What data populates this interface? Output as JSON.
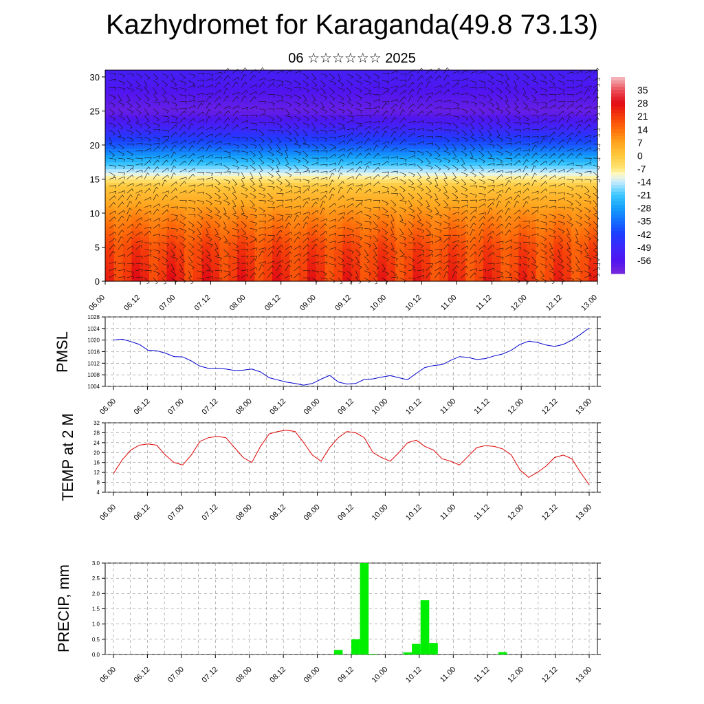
{
  "title": "Kazhydromet for Karaganda(49.8 73.13)",
  "date_line": "06 ☆☆☆☆☆☆ 2025",
  "time_labels": [
    "06.00",
    "06.12",
    "07.00",
    "07.12",
    "08.00",
    "08.12",
    "09.00",
    "09.12",
    "10.00",
    "10.12",
    "11.00",
    "11.12",
    "12.00",
    "12.12",
    "13.00"
  ],
  "colors": {
    "pmsl_line": "#0000cc",
    "temp_line": "#dd0000",
    "precip_bar": "#00ee00",
    "grid": "#888888"
  },
  "chart_data": [
    {
      "type": "heatmap",
      "y_ticks": [
        "0",
        "5",
        "10",
        "15",
        "20",
        "25",
        "30"
      ],
      "ylim": [
        0,
        31
      ],
      "colorbar_labels": [
        "35",
        "28",
        "21",
        "14",
        "7",
        "0",
        "-7",
        "-14",
        "-21",
        "-28",
        "-35",
        "-42",
        "-49",
        "-56"
      ],
      "colorbar_range": [
        -63,
        42
      ],
      "level_temperature_profile": [
        {
          "level": 0,
          "temp": 24
        },
        {
          "level": 5,
          "temp": 20
        },
        {
          "level": 10,
          "temp": 10
        },
        {
          "level": 14,
          "temp": 0
        },
        {
          "level": 17,
          "temp": -20
        },
        {
          "level": 20,
          "temp": -38
        },
        {
          "level": 23,
          "temp": -52
        },
        {
          "level": 25,
          "temp": -60
        },
        {
          "level": 28,
          "temp": -56
        },
        {
          "level": 31,
          "temp": -52
        }
      ],
      "wind_vectors": true
    },
    {
      "type": "line",
      "ylabel": "PMSL",
      "y_ticks": [
        "1004",
        "1008",
        "1012",
        "1016",
        "1020",
        "1024",
        "1028"
      ],
      "ylim": [
        1004,
        1028
      ],
      "x_ticks": [
        "06.00",
        "06.12",
        "07.00",
        "07.12",
        "08.00",
        "08.12",
        "09.00",
        "09.12",
        "10.00",
        "10.12",
        "11.00",
        "11.12",
        "12.00",
        "12.12",
        "13.00"
      ],
      "values": [
        1020,
        1020.3,
        1019.5,
        1018.5,
        1016.5,
        1016.3,
        1015.5,
        1014.3,
        1014.2,
        1012.8,
        1011,
        1010.2,
        1010.3,
        1010,
        1009.5,
        1009.6,
        1010,
        1009,
        1007,
        1006.2,
        1005.5,
        1005,
        1004.4,
        1005,
        1006.5,
        1007.8,
        1005.5,
        1004.8,
        1005,
        1006.4,
        1006.6,
        1007.2,
        1007.7,
        1007,
        1006.3,
        1008.5,
        1010.5,
        1011.2,
        1011.5,
        1013,
        1014.3,
        1014,
        1013.3,
        1013.6,
        1014.5,
        1015.2,
        1016.5,
        1018.5,
        1019.6,
        1019.2,
        1018.3,
        1017.8,
        1018.5,
        1020,
        1022,
        1024.2
      ]
    },
    {
      "type": "line",
      "ylabel": "TEMP at 2 M",
      "y_ticks": [
        "4",
        "8",
        "12",
        "16",
        "20",
        "24",
        "28",
        "32"
      ],
      "ylim": [
        4,
        32
      ],
      "x_ticks": [
        "06.00",
        "06.12",
        "07.00",
        "07.12",
        "08.00",
        "08.12",
        "09.00",
        "09.12",
        "10.00",
        "10.12",
        "11.00",
        "11.12",
        "12.00",
        "12.12",
        "13.00"
      ],
      "values": [
        11.5,
        17,
        21,
        23,
        23.5,
        23,
        19,
        16,
        15,
        19,
        24.5,
        26,
        26.5,
        26,
        22,
        18,
        16,
        22.5,
        27.5,
        28.5,
        29,
        28.5,
        24,
        19,
        16.5,
        22,
        26,
        28.5,
        28,
        26,
        20,
        18,
        16.5,
        20,
        24,
        25,
        22.5,
        21,
        17.5,
        16.5,
        15,
        18.5,
        22,
        22.8,
        22.5,
        21.5,
        19,
        13,
        10,
        12,
        14.5,
        18,
        19,
        17.5,
        12,
        7
      ]
    },
    {
      "type": "bar",
      "ylabel": "PRECIP, mm",
      "y_ticks": [
        "0.0",
        "0.5",
        "1.0",
        "1.5",
        "2.0",
        "2.5",
        "3.0"
      ],
      "ylim": [
        0,
        3
      ],
      "x_ticks": [
        "06.00",
        "06.12",
        "07.00",
        "07.12",
        "08.00",
        "08.12",
        "09.00",
        "09.12",
        "10.00",
        "10.12",
        "11.00",
        "11.12",
        "12.00",
        "12.12",
        "13.00"
      ],
      "values": [
        0,
        0,
        0,
        0,
        0,
        0,
        0,
        0,
        0,
        0,
        0,
        0,
        0,
        0,
        0,
        0,
        0,
        0,
        0,
        0,
        0,
        0,
        0,
        0,
        0,
        0,
        0.15,
        0,
        0.5,
        3.0,
        0.02,
        0,
        0,
        0,
        0.07,
        0.35,
        1.78,
        0.38,
        0,
        0,
        0,
        0,
        0,
        0,
        0,
        0.08,
        0,
        0,
        0,
        0,
        0,
        0,
        0,
        0,
        0,
        0
      ]
    }
  ]
}
